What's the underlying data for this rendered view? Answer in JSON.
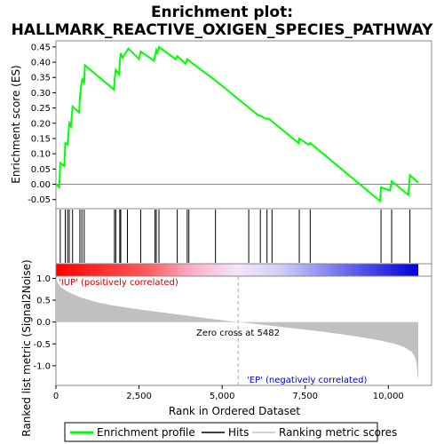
{
  "chart_data": {
    "type": "line",
    "title_line1": "Enrichment plot:",
    "title_line2": "HALLMARK_REACTIVE_OXIGEN_SPECIES_PATHWAY",
    "es_panel": {
      "ylabel": "Enrichment score (ES)",
      "ylim": [
        -0.08,
        0.47
      ],
      "yticks": [
        -0.05,
        0.0,
        0.05,
        0.1,
        0.15,
        0.2,
        0.25,
        0.3,
        0.35,
        0.4,
        0.45
      ],
      "ytick_labels": [
        "-0.05",
        "0.00",
        "0.05",
        "0.10",
        "0.15",
        "0.20",
        "0.25",
        "0.30",
        "0.35",
        "0.40",
        "0.45"
      ],
      "series": [
        {
          "name": "Enrichment profile",
          "color": "#00ff00",
          "x": [
            0,
            100,
            130,
            250,
            280,
            350,
            400,
            450,
            500,
            700,
            720,
            780,
            800,
            850,
            870,
            1750,
            1760,
            1800,
            1900,
            1920,
            1950,
            2000,
            2150,
            2180,
            2500,
            2550,
            2950,
            2980,
            3020,
            3050,
            3100,
            3600,
            3650,
            3900,
            3950,
            4000,
            4800,
            6100,
            6150,
            6300,
            6400,
            7300,
            7320,
            7600,
            7650,
            9750,
            9780,
            10050,
            10100,
            10600,
            10650,
            10900
          ],
          "y": [
            0.0,
            -0.01,
            0.07,
            0.06,
            0.135,
            0.13,
            0.2,
            0.19,
            0.255,
            0.235,
            0.29,
            0.34,
            0.345,
            0.33,
            0.39,
            0.31,
            0.34,
            0.375,
            0.36,
            0.4,
            0.43,
            0.415,
            0.44,
            0.445,
            0.41,
            0.435,
            0.405,
            0.42,
            0.44,
            0.43,
            0.45,
            0.41,
            0.42,
            0.395,
            0.41,
            0.405,
            0.34,
            0.225,
            0.225,
            0.215,
            0.215,
            0.135,
            0.15,
            0.13,
            0.135,
            -0.055,
            -0.01,
            -0.02,
            0.01,
            -0.035,
            0.03,
            0.005
          ]
        }
      ]
    },
    "hits": {
      "name": "Hits",
      "positions": [
        130,
        280,
        350,
        400,
        500,
        720,
        780,
        850,
        1760,
        1800,
        1920,
        1950,
        2150,
        2550,
        2980,
        3020,
        3100,
        3650,
        3950,
        4000,
        4800,
        5800,
        6150,
        6350,
        6500,
        7320,
        7650,
        9780,
        10100,
        10650
      ]
    },
    "rank_panel": {
      "ylabel": "Ranked list metric (Signal2Noise)",
      "ylim": [
        -1.45,
        1.05
      ],
      "yticks": [
        -1.0,
        -0.5,
        0.0,
        0.5,
        1.0
      ],
      "ytick_labels": [
        "-1.0",
        "-0.5",
        "0.0",
        "0.5",
        "1.0"
      ],
      "series": [
        {
          "name": "Ranking metric scores",
          "color": "#c0c0c0",
          "x": [
            0,
            50,
            150,
            300,
            500,
            800,
            1200,
            1700,
            2300,
            3000,
            3800,
            4600,
            5482,
            6200,
            7000,
            7800,
            8600,
            9300,
            9800,
            10200,
            10500,
            10700,
            10800,
            10850,
            10900
          ],
          "y": [
            1.0,
            0.9,
            0.8,
            0.72,
            0.64,
            0.55,
            0.46,
            0.38,
            0.31,
            0.24,
            0.16,
            0.08,
            0.0,
            -0.06,
            -0.13,
            -0.2,
            -0.28,
            -0.36,
            -0.43,
            -0.5,
            -0.58,
            -0.68,
            -0.8,
            -0.95,
            -1.35
          ]
        }
      ],
      "zero_cross_label": "Zero cross at 5482",
      "zero_cross": 5482,
      "pos_label": "'IUP' (positively correlated)",
      "neg_label": "'EP' (negatively correlated)"
    },
    "x_axis": {
      "xlabel": "Rank in Ordered Dataset",
      "xlim": [
        0,
        10900
      ],
      "xticks": [
        0,
        2500,
        5000,
        7500,
        10000
      ],
      "xtick_labels": [
        "0",
        "2,500",
        "5,000",
        "7,500",
        "10,000"
      ]
    },
    "legend": {
      "placement": "bottom",
      "entries": [
        {
          "label": "Enrichment profile",
          "color": "#00ff00"
        },
        {
          "label": "Hits",
          "color": "#000000"
        },
        {
          "label": "Ranking metric scores",
          "color": "#c0c0c0"
        }
      ]
    },
    "colors": {
      "heat_positive": "#ff0000",
      "heat_negative": "#0000ff",
      "pos_label_color": "#cc0000",
      "neg_label_color": "#0000cc"
    }
  }
}
